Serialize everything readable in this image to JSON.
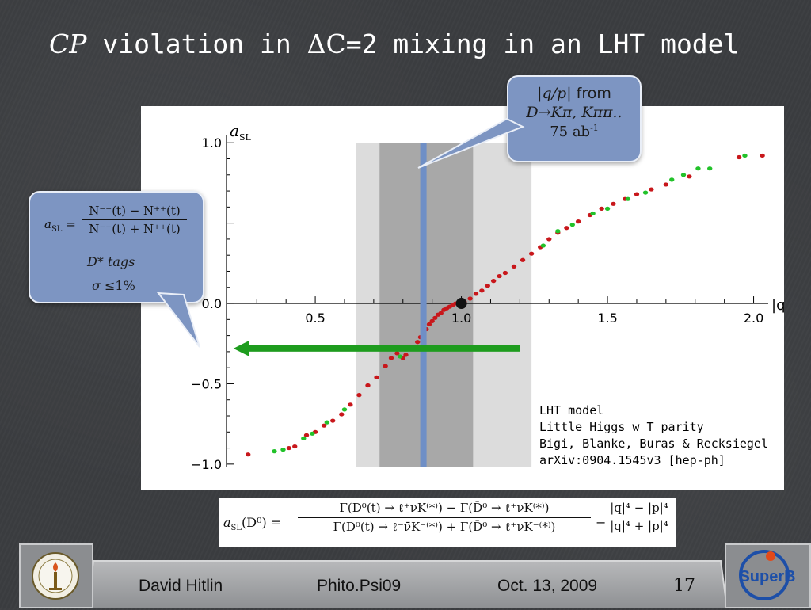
{
  "slide": {
    "title_cp": "CP",
    "title_rest1": " violation in ",
    "title_delta": "ΔC",
    "title_rest2": "=2 mixing in an LHT model"
  },
  "bubble_qp": {
    "line1_math": "|q/p|",
    "line1_text": " from",
    "line2": "D→Kπ, Kππ..",
    "line3_value": "75 ab",
    "line3_sup": "-1"
  },
  "bubble_asl": {
    "lhs": "a",
    "lhs_sub": "SL",
    "eq": " =",
    "numerator": "N⁻⁻(t) − N⁺⁺(t)",
    "denominator": "N⁻⁻(t) + N⁺⁺(t)",
    "tags": "D* tags",
    "sigma_sym": "σ",
    "sigma_val": " ≤1%"
  },
  "lht_note": {
    "line1": "LHT model",
    "line2": "Little Higgs w T parity",
    "line3": "Bigi, Blanke, Buras & Recksiegel",
    "line4": "arXiv:0904.1545v3 [hep-ph]"
  },
  "formula": {
    "lhs": "a",
    "lhs_sub": "SL",
    "lhs_arg": "(D⁰) =",
    "numerator": "Γ(D⁰(t) → ℓ⁺νK⁽*⁾) − Γ(D̄⁰ → ℓ⁺νK⁽*⁾)",
    "denominator": "Γ(D⁰(t) → ℓ⁻ν̄K⁻⁽*⁾) + Γ(D̄⁰ → ℓ⁺νK⁻⁽*⁾)",
    "minus": "−",
    "num2": "|q|⁴ − |p|⁴",
    "den2": "|q|⁴ + |p|⁴"
  },
  "footer": {
    "author": "David Hitlin",
    "event": "Phito.Psi09",
    "date": "Oct. 13, 2009",
    "page": "17",
    "logo_right_text": "SuperB"
  },
  "chart_data": {
    "type": "scatter",
    "ylabel_main": "a",
    "ylabel_sub": "SL",
    "xlabel": "|q/p|",
    "xlim": [
      0.18,
      2.05
    ],
    "ylim": [
      -1.05,
      1.08
    ],
    "xticks": [
      0.5,
      1.0,
      1.5,
      2.0
    ],
    "xtick_labels": [
      "0.5",
      "1.0",
      "1.5",
      "2.0"
    ],
    "yticks": [
      -1.0,
      -0.5,
      0.0,
      1.0
    ],
    "ytick_labels": [
      "−1.0",
      "−0.5",
      "0.0",
      "1.0"
    ],
    "bands": [
      {
        "x0": 0.64,
        "x1": 1.24,
        "color": "#dcdcdc"
      },
      {
        "x0": 0.72,
        "x1": 1.04,
        "color": "#a8a8a8"
      }
    ],
    "measurement_line_x": 0.87,
    "arrow": {
      "y": -0.28,
      "x_from": 1.2,
      "x_to": 0.22
    },
    "marker_point": {
      "x": 1.0,
      "y": 0.0
    },
    "colors": {
      "red": "#c8171b",
      "green": "#22c22a",
      "blue_line": "#6f8fc6",
      "arrow": "#1e9c1e"
    },
    "series": [
      {
        "color": "red",
        "points": [
          [
            0.27,
            -0.94
          ],
          [
            0.41,
            -0.9
          ],
          [
            0.43,
            -0.89
          ],
          [
            0.47,
            -0.82
          ],
          [
            0.5,
            -0.8
          ],
          [
            0.53,
            -0.76
          ],
          [
            0.56,
            -0.73
          ],
          [
            0.59,
            -0.69
          ],
          [
            0.62,
            -0.63
          ],
          [
            0.65,
            -0.57
          ],
          [
            0.68,
            -0.51
          ],
          [
            0.71,
            -0.46
          ],
          [
            0.74,
            -0.39
          ],
          [
            0.76,
            -0.34
          ],
          [
            0.78,
            -0.31
          ],
          [
            0.8,
            -0.34
          ],
          [
            0.81,
            -0.32
          ],
          [
            0.83,
            -0.28
          ],
          [
            0.85,
            -0.24
          ],
          [
            0.86,
            -0.21
          ],
          [
            0.87,
            -0.18
          ],
          [
            0.88,
            -0.16
          ],
          [
            0.89,
            -0.13
          ],
          [
            0.9,
            -0.11
          ],
          [
            0.91,
            -0.09
          ],
          [
            0.92,
            -0.07
          ],
          [
            0.93,
            -0.06
          ],
          [
            0.94,
            -0.04
          ],
          [
            0.95,
            -0.03
          ],
          [
            0.96,
            -0.02
          ],
          [
            0.97,
            -0.01
          ],
          [
            0.98,
            0.0
          ],
          [
            0.99,
            0.0
          ],
          [
            1.01,
            0.01
          ],
          [
            1.03,
            0.03
          ],
          [
            1.05,
            0.06
          ],
          [
            1.07,
            0.08
          ],
          [
            1.09,
            0.11
          ],
          [
            1.11,
            0.14
          ],
          [
            1.13,
            0.17
          ],
          [
            1.15,
            0.19
          ],
          [
            1.18,
            0.23
          ],
          [
            1.21,
            0.27
          ],
          [
            1.24,
            0.31
          ],
          [
            1.27,
            0.35
          ],
          [
            1.3,
            0.4
          ],
          [
            1.33,
            0.44
          ],
          [
            1.36,
            0.47
          ],
          [
            1.4,
            0.51
          ],
          [
            1.44,
            0.55
          ],
          [
            1.48,
            0.59
          ],
          [
            1.52,
            0.62
          ],
          [
            1.56,
            0.65
          ],
          [
            1.6,
            0.68
          ],
          [
            1.65,
            0.71
          ],
          [
            1.7,
            0.74
          ],
          [
            1.78,
            0.79
          ],
          [
            1.95,
            0.91
          ],
          [
            2.03,
            0.92
          ]
        ]
      },
      {
        "color": "green",
        "points": [
          [
            0.36,
            -0.92
          ],
          [
            0.39,
            -0.91
          ],
          [
            0.46,
            -0.84
          ],
          [
            0.49,
            -0.81
          ],
          [
            0.54,
            -0.74
          ],
          [
            0.6,
            -0.66
          ],
          [
            0.79,
            -0.33
          ],
          [
            1.28,
            0.36
          ],
          [
            1.33,
            0.45
          ],
          [
            1.38,
            0.49
          ],
          [
            1.45,
            0.56
          ],
          [
            1.5,
            0.59
          ],
          [
            1.57,
            0.65
          ],
          [
            1.63,
            0.69
          ],
          [
            1.72,
            0.77
          ],
          [
            1.76,
            0.8
          ],
          [
            1.81,
            0.84
          ],
          [
            1.85,
            0.84
          ],
          [
            1.97,
            0.92
          ]
        ]
      }
    ]
  }
}
